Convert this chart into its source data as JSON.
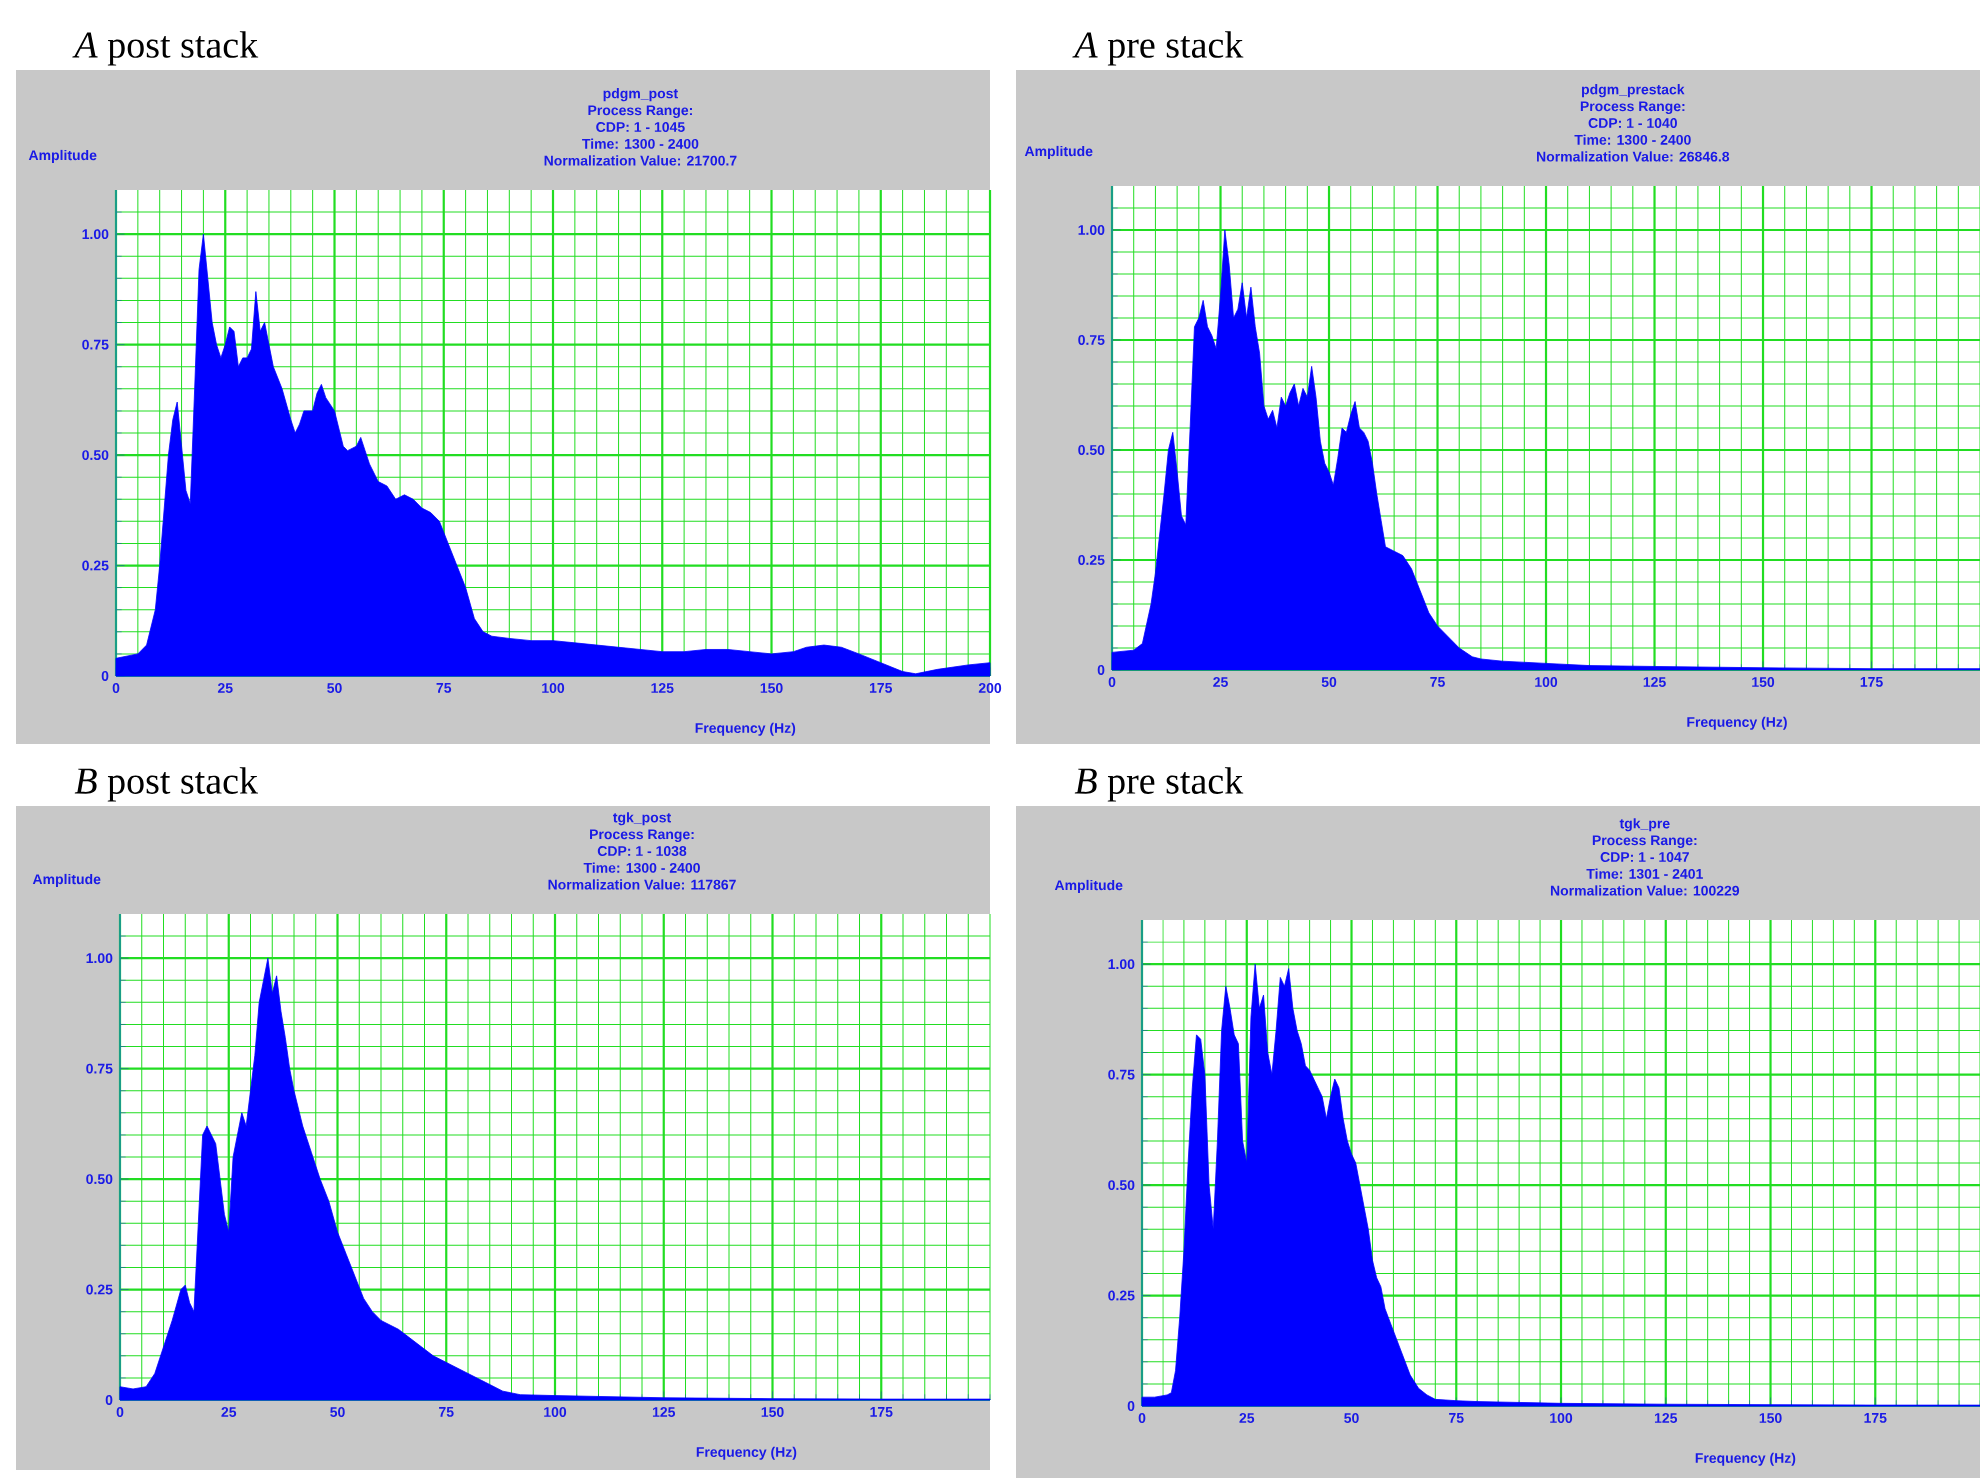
{
  "chart_data": [
    {
      "type": "area",
      "title": "*A* post stack",
      "subtitle": "pdgm_post",
      "annotations": [
        "Process Range:",
        "CDP: 1 - 1045",
        "Time: 1300 - 2400",
        "Normalization Value: 21700.7"
      ],
      "xlabel": "Frequency (Hz)",
      "ylabel": "Amplitude",
      "color": "#0000ff",
      "grid": true,
      "xlim": [
        0,
        200
      ],
      "ylim": [
        0,
        1.1
      ],
      "xticks": [
        0,
        {
          "value": 5,
          "label": null
        },
        {
          "value": 10,
          "label": null
        },
        {
          "value": 15,
          "label": null
        },
        {
          "value": 20,
          "label": null
        },
        25,
        {
          "value": 30,
          "label": null
        },
        {
          "value": 35,
          "label": null
        },
        {
          "value": 40,
          "label": null
        },
        {
          "value": 45,
          "label": null
        },
        50,
        {
          "value": 55,
          "label": null
        },
        {
          "value": 60,
          "label": null
        },
        {
          "value": 65,
          "label": null
        },
        {
          "value": 70,
          "label": null
        },
        75,
        {
          "value": 80,
          "label": null
        },
        {
          "value": 85,
          "label": null
        },
        {
          "value": 90,
          "label": null
        },
        {
          "value": 95,
          "label": null
        },
        100,
        {
          "value": 105,
          "label": null
        },
        {
          "value": 110,
          "label": null
        },
        {
          "value": 115,
          "label": null
        },
        {
          "value": 120,
          "label": null
        },
        125,
        {
          "value": 130,
          "label": null
        },
        {
          "value": 135,
          "label": null
        },
        {
          "value": 140,
          "label": null
        },
        {
          "value": 145,
          "label": null
        },
        150,
        {
          "value": 155,
          "label": null
        },
        {
          "value": 160,
          "label": null
        },
        {
          "value": 165,
          "label": null
        },
        {
          "value": 170,
          "label": null
        },
        175,
        {
          "value": 180,
          "label": null
        },
        {
          "value": 185,
          "label": null
        },
        {
          "value": 190,
          "label": null
        },
        {
          "value": 195,
          "label": null
        },
        200
      ],
      "yticks": [
        0,
        {
          "value": 0.05,
          "label": null
        },
        {
          "value": 0.1,
          "label": null
        },
        {
          "value": 0.15,
          "label": null
        },
        {
          "value": 0.2,
          "label": null
        },
        0.25,
        {
          "value": 0.3,
          "label": null
        },
        {
          "value": 0.35,
          "label": null
        },
        {
          "value": 0.4,
          "label": null
        },
        {
          "value": 0.45,
          "label": null
        },
        {
          "value": 0.5,
          "label": "0.50"
        },
        {
          "value": 0.55,
          "label": null
        },
        {
          "value": 0.6,
          "label": null
        },
        {
          "value": 0.65,
          "label": null
        },
        {
          "value": 0.7,
          "label": null
        },
        0.75,
        {
          "value": 0.8,
          "label": null
        },
        {
          "value": 0.85,
          "label": null
        },
        {
          "value": 0.9,
          "label": null
        },
        {
          "value": 0.95,
          "label": null
        },
        {
          "value": 1,
          "label": "1.00"
        },
        {
          "value": 1.05,
          "label": null
        }
      ],
      "x": [
        0,
        5,
        7,
        9,
        10,
        12,
        13,
        14,
        15,
        16,
        17,
        18,
        19,
        20,
        21,
        22,
        23,
        24,
        25,
        26,
        27,
        28,
        29,
        30,
        31,
        32,
        33,
        34,
        35,
        36,
        38,
        40,
        41,
        42,
        43,
        45,
        46,
        47,
        48,
        50,
        52,
        53,
        55,
        56,
        57,
        58,
        60,
        62,
        64,
        66,
        68,
        70,
        72,
        74,
        76,
        78,
        80,
        82,
        84,
        86,
        90,
        95,
        100,
        105,
        110,
        115,
        120,
        125,
        130,
        135,
        140,
        145,
        150,
        155,
        158,
        162,
        166,
        170,
        175,
        180,
        183,
        188,
        195,
        200
      ],
      "values": [
        0.04,
        0.05,
        0.07,
        0.15,
        0.25,
        0.5,
        0.58,
        0.62,
        0.52,
        0.42,
        0.39,
        0.65,
        0.92,
        1.0,
        0.9,
        0.8,
        0.75,
        0.72,
        0.75,
        0.79,
        0.78,
        0.7,
        0.72,
        0.72,
        0.74,
        0.87,
        0.78,
        0.8,
        0.75,
        0.7,
        0.65,
        0.58,
        0.55,
        0.57,
        0.6,
        0.6,
        0.64,
        0.66,
        0.63,
        0.6,
        0.52,
        0.51,
        0.52,
        0.54,
        0.51,
        0.48,
        0.44,
        0.43,
        0.4,
        0.41,
        0.4,
        0.38,
        0.37,
        0.35,
        0.3,
        0.25,
        0.2,
        0.13,
        0.1,
        0.09,
        0.085,
        0.08,
        0.08,
        0.075,
        0.07,
        0.065,
        0.06,
        0.055,
        0.055,
        0.06,
        0.06,
        0.055,
        0.05,
        0.055,
        0.065,
        0.07,
        0.065,
        0.05,
        0.03,
        0.01,
        0.005,
        0.015,
        0.025,
        0.03
      ]
    },
    {
      "type": "area",
      "title": "*A* pre stack",
      "subtitle": "pdgm_prestack",
      "annotations": [
        "Process Range:",
        "CDP: 1 - 1040",
        "Time: 1300 - 2400",
        "Normalization Value: 26846.8"
      ],
      "xlabel": "Frequency (Hz)",
      "ylabel": "Amplitude",
      "color": "#0000ff",
      "grid": true,
      "xlim": [
        0,
        200
      ],
      "ylim": [
        0,
        1.1
      ],
      "xticks": [
        0,
        {
          "value": 5,
          "label": null
        },
        {
          "value": 10,
          "label": null
        },
        {
          "value": 15,
          "label": null
        },
        {
          "value": 20,
          "label": null
        },
        25,
        {
          "value": 30,
          "label": null
        },
        {
          "value": 35,
          "label": null
        },
        {
          "value": 40,
          "label": null
        },
        {
          "value": 45,
          "label": null
        },
        50,
        {
          "value": 55,
          "label": null
        },
        {
          "value": 60,
          "label": null
        },
        {
          "value": 65,
          "label": null
        },
        {
          "value": 70,
          "label": null
        },
        75,
        {
          "value": 80,
          "label": null
        },
        {
          "value": 85,
          "label": null
        },
        {
          "value": 90,
          "label": null
        },
        {
          "value": 95,
          "label": null
        },
        100,
        {
          "value": 105,
          "label": null
        },
        {
          "value": 110,
          "label": null
        },
        {
          "value": 115,
          "label": null
        },
        {
          "value": 120,
          "label": null
        },
        125,
        {
          "value": 130,
          "label": null
        },
        {
          "value": 135,
          "label": null
        },
        {
          "value": 140,
          "label": null
        },
        {
          "value": 145,
          "label": null
        },
        150,
        {
          "value": 155,
          "label": null
        },
        {
          "value": 160,
          "label": null
        },
        {
          "value": 165,
          "label": null
        },
        {
          "value": 170,
          "label": null
        },
        175,
        {
          "value": 180,
          "label": null
        },
        {
          "value": 185,
          "label": null
        },
        {
          "value": 190,
          "label": null
        },
        {
          "value": 195,
          "label": null
        },
        {
          "value": 200,
          "label": null
        }
      ],
      "yticks": [
        0,
        {
          "value": 0.05,
          "label": null
        },
        {
          "value": 0.1,
          "label": null
        },
        {
          "value": 0.15,
          "label": null
        },
        {
          "value": 0.2,
          "label": null
        },
        0.25,
        {
          "value": 0.3,
          "label": null
        },
        {
          "value": 0.35,
          "label": null
        },
        {
          "value": 0.4,
          "label": null
        },
        {
          "value": 0.45,
          "label": null
        },
        {
          "value": 0.5,
          "label": "0.50"
        },
        {
          "value": 0.55,
          "label": null
        },
        {
          "value": 0.6,
          "label": null
        },
        {
          "value": 0.65,
          "label": null
        },
        {
          "value": 0.7,
          "label": null
        },
        0.75,
        {
          "value": 0.8,
          "label": null
        },
        {
          "value": 0.85,
          "label": null
        },
        {
          "value": 0.9,
          "label": null
        },
        {
          "value": 0.95,
          "label": null
        },
        {
          "value": 1,
          "label": "1.00"
        },
        {
          "value": 1.05,
          "label": null
        }
      ],
      "x": [
        0,
        5,
        7,
        9,
        10,
        12,
        13,
        14,
        15,
        16,
        17,
        18,
        19,
        20,
        21,
        22,
        23,
        24,
        25,
        26,
        27,
        28,
        29,
        30,
        31,
        32,
        33,
        34,
        35,
        36,
        37,
        38,
        39,
        40,
        41,
        42,
        43,
        44,
        45,
        46,
        47,
        48,
        49,
        50,
        51,
        52,
        53,
        54,
        55,
        56,
        57,
        58,
        59,
        60,
        61,
        62,
        63,
        65,
        67,
        69,
        71,
        73,
        75,
        78,
        80,
        83,
        85,
        90,
        100,
        110,
        125,
        150,
        175,
        200
      ],
      "values": [
        0.04,
        0.045,
        0.06,
        0.15,
        0.22,
        0.4,
        0.5,
        0.54,
        0.45,
        0.35,
        0.33,
        0.55,
        0.78,
        0.8,
        0.84,
        0.78,
        0.76,
        0.73,
        0.85,
        1.0,
        0.92,
        0.8,
        0.82,
        0.88,
        0.8,
        0.87,
        0.78,
        0.72,
        0.6,
        0.57,
        0.59,
        0.55,
        0.62,
        0.6,
        0.63,
        0.65,
        0.6,
        0.64,
        0.62,
        0.69,
        0.62,
        0.52,
        0.47,
        0.45,
        0.42,
        0.48,
        0.55,
        0.54,
        0.58,
        0.61,
        0.55,
        0.54,
        0.52,
        0.47,
        0.4,
        0.34,
        0.28,
        0.27,
        0.26,
        0.23,
        0.18,
        0.13,
        0.1,
        0.07,
        0.05,
        0.03,
        0.025,
        0.02,
        0.015,
        0.01,
        0.008,
        0.005,
        0.003,
        0.003
      ]
    },
    {
      "type": "area",
      "title": "*B* post stack",
      "subtitle": "tgk_post",
      "annotations": [
        "Process Range:",
        "CDP: 1 - 1038",
        "Time: 1300 - 2400",
        "Normalization Value: 117867"
      ],
      "xlabel": "Frequency (Hz)",
      "ylabel": "Amplitude",
      "color": "#0000ff",
      "grid": true,
      "xlim": [
        0,
        200
      ],
      "ylim": [
        0,
        1.1
      ],
      "xticks": [
        0,
        {
          "value": 5,
          "label": null
        },
        {
          "value": 10,
          "label": null
        },
        {
          "value": 15,
          "label": null
        },
        {
          "value": 20,
          "label": null
        },
        25,
        {
          "value": 30,
          "label": null
        },
        {
          "value": 35,
          "label": null
        },
        {
          "value": 40,
          "label": null
        },
        {
          "value": 45,
          "label": null
        },
        50,
        {
          "value": 55,
          "label": null
        },
        {
          "value": 60,
          "label": null
        },
        {
          "value": 65,
          "label": null
        },
        {
          "value": 70,
          "label": null
        },
        75,
        {
          "value": 80,
          "label": null
        },
        {
          "value": 85,
          "label": null
        },
        {
          "value": 90,
          "label": null
        },
        {
          "value": 95,
          "label": null
        },
        100,
        {
          "value": 105,
          "label": null
        },
        {
          "value": 110,
          "label": null
        },
        {
          "value": 115,
          "label": null
        },
        {
          "value": 120,
          "label": null
        },
        125,
        {
          "value": 130,
          "label": null
        },
        {
          "value": 135,
          "label": null
        },
        {
          "value": 140,
          "label": null
        },
        {
          "value": 145,
          "label": null
        },
        150,
        {
          "value": 155,
          "label": null
        },
        {
          "value": 160,
          "label": null
        },
        {
          "value": 165,
          "label": null
        },
        {
          "value": 170,
          "label": null
        },
        175,
        {
          "value": 180,
          "label": null
        },
        {
          "value": 185,
          "label": null
        },
        {
          "value": 190,
          "label": null
        },
        {
          "value": 195,
          "label": null
        },
        {
          "value": 200,
          "label": null
        }
      ],
      "yticks": [
        0,
        {
          "value": 0.05,
          "label": null
        },
        {
          "value": 0.1,
          "label": null
        },
        {
          "value": 0.15,
          "label": null
        },
        {
          "value": 0.2,
          "label": null
        },
        0.25,
        {
          "value": 0.3,
          "label": null
        },
        {
          "value": 0.35,
          "label": null
        },
        {
          "value": 0.4,
          "label": null
        },
        {
          "value": 0.45,
          "label": null
        },
        {
          "value": 0.5,
          "label": "0.50"
        },
        {
          "value": 0.55,
          "label": null
        },
        {
          "value": 0.6,
          "label": null
        },
        {
          "value": 0.65,
          "label": null
        },
        {
          "value": 0.7,
          "label": null
        },
        0.75,
        {
          "value": 0.8,
          "label": null
        },
        {
          "value": 0.85,
          "label": null
        },
        {
          "value": 0.9,
          "label": null
        },
        {
          "value": 0.95,
          "label": null
        },
        {
          "value": 1,
          "label": "1.00"
        },
        {
          "value": 1.05,
          "label": null
        }
      ],
      "x": [
        0,
        3,
        6,
        8,
        10,
        12,
        14,
        15,
        16,
        17,
        18,
        19,
        20,
        22,
        23,
        24,
        25,
        26,
        27,
        28,
        29,
        30,
        31,
        32,
        33,
        34,
        35,
        36,
        37,
        38,
        39,
        40,
        42,
        44,
        46,
        48,
        50,
        52,
        54,
        56,
        58,
        60,
        64,
        68,
        72,
        76,
        80,
        84,
        88,
        92,
        100,
        110,
        125,
        150,
        175,
        200
      ],
      "values": [
        0.03,
        0.025,
        0.03,
        0.06,
        0.12,
        0.18,
        0.25,
        0.26,
        0.22,
        0.2,
        0.4,
        0.6,
        0.62,
        0.58,
        0.5,
        0.42,
        0.38,
        0.55,
        0.6,
        0.65,
        0.62,
        0.7,
        0.78,
        0.9,
        0.95,
        1.0,
        0.92,
        0.96,
        0.88,
        0.82,
        0.75,
        0.7,
        0.62,
        0.56,
        0.5,
        0.45,
        0.38,
        0.33,
        0.28,
        0.23,
        0.2,
        0.18,
        0.16,
        0.13,
        0.1,
        0.08,
        0.06,
        0.04,
        0.02,
        0.012,
        0.01,
        0.008,
        0.005,
        0.003,
        0.002,
        0.002
      ]
    },
    {
      "type": "area",
      "title": "*B* pre stack",
      "subtitle": "tgk_pre",
      "annotations": [
        "Process Range:",
        "CDP: 1 - 1047",
        "Time: 1301 - 2401",
        "Normalization Value: 100229"
      ],
      "xlabel": "Frequency (Hz)",
      "ylabel": "Amplitude",
      "color": "#0000ff",
      "grid": true,
      "xlim": [
        0,
        200
      ],
      "ylim": [
        0,
        1.1
      ],
      "xticks": [
        0,
        {
          "value": 5,
          "label": null
        },
        {
          "value": 10,
          "label": null
        },
        {
          "value": 15,
          "label": null
        },
        {
          "value": 20,
          "label": null
        },
        25,
        {
          "value": 30,
          "label": null
        },
        {
          "value": 35,
          "label": null
        },
        {
          "value": 40,
          "label": null
        },
        {
          "value": 45,
          "label": null
        },
        50,
        {
          "value": 55,
          "label": null
        },
        {
          "value": 60,
          "label": null
        },
        {
          "value": 65,
          "label": null
        },
        {
          "value": 70,
          "label": null
        },
        75,
        {
          "value": 80,
          "label": null
        },
        {
          "value": 85,
          "label": null
        },
        {
          "value": 90,
          "label": null
        },
        {
          "value": 95,
          "label": null
        },
        100,
        {
          "value": 105,
          "label": null
        },
        {
          "value": 110,
          "label": null
        },
        {
          "value": 115,
          "label": null
        },
        {
          "value": 120,
          "label": null
        },
        125,
        {
          "value": 130,
          "label": null
        },
        {
          "value": 135,
          "label": null
        },
        {
          "value": 140,
          "label": null
        },
        {
          "value": 145,
          "label": null
        },
        150,
        {
          "value": 155,
          "label": null
        },
        {
          "value": 160,
          "label": null
        },
        {
          "value": 165,
          "label": null
        },
        {
          "value": 170,
          "label": null
        },
        175,
        {
          "value": 180,
          "label": null
        },
        {
          "value": 185,
          "label": null
        },
        {
          "value": 190,
          "label": null
        },
        {
          "value": 195,
          "label": null
        },
        {
          "value": 200,
          "label": null
        }
      ],
      "yticks": [
        0,
        {
          "value": 0.05,
          "label": null
        },
        {
          "value": 0.1,
          "label": null
        },
        {
          "value": 0.15,
          "label": null
        },
        {
          "value": 0.2,
          "label": null
        },
        0.25,
        {
          "value": 0.3,
          "label": null
        },
        {
          "value": 0.35,
          "label": null
        },
        {
          "value": 0.4,
          "label": null
        },
        {
          "value": 0.45,
          "label": null
        },
        {
          "value": 0.5,
          "label": "0.50"
        },
        {
          "value": 0.55,
          "label": null
        },
        {
          "value": 0.6,
          "label": null
        },
        {
          "value": 0.65,
          "label": null
        },
        {
          "value": 0.7,
          "label": null
        },
        0.75,
        {
          "value": 0.8,
          "label": null
        },
        {
          "value": 0.85,
          "label": null
        },
        {
          "value": 0.9,
          "label": null
        },
        {
          "value": 0.95,
          "label": null
        },
        {
          "value": 1,
          "label": "1.00"
        },
        {
          "value": 1.05,
          "label": null
        }
      ],
      "x": [
        0,
        3,
        6,
        7,
        8,
        9,
        10,
        11,
        12,
        13,
        14,
        15,
        16,
        17,
        18,
        19,
        20,
        21,
        22,
        23,
        24,
        25,
        26,
        27,
        28,
        29,
        30,
        31,
        32,
        33,
        34,
        35,
        36,
        37,
        38,
        39,
        40,
        41,
        42,
        43,
        44,
        45,
        46,
        47,
        48,
        49,
        50,
        51,
        52,
        53,
        54,
        55,
        56,
        57,
        58,
        60,
        62,
        64,
        66,
        68,
        70,
        75,
        80,
        90,
        100,
        125,
        150,
        175,
        200
      ],
      "values": [
        0.02,
        0.02,
        0.025,
        0.03,
        0.08,
        0.2,
        0.35,
        0.55,
        0.72,
        0.84,
        0.83,
        0.75,
        0.5,
        0.4,
        0.6,
        0.85,
        0.95,
        0.9,
        0.84,
        0.82,
        0.6,
        0.55,
        0.88,
        1.0,
        0.9,
        0.93,
        0.8,
        0.75,
        0.85,
        0.97,
        0.95,
        0.99,
        0.9,
        0.85,
        0.82,
        0.77,
        0.76,
        0.74,
        0.72,
        0.7,
        0.65,
        0.7,
        0.74,
        0.72,
        0.65,
        0.6,
        0.57,
        0.55,
        0.5,
        0.45,
        0.4,
        0.33,
        0.29,
        0.27,
        0.22,
        0.17,
        0.12,
        0.07,
        0.04,
        0.025,
        0.015,
        0.012,
        0.01,
        0.008,
        0.006,
        0.004,
        0.003,
        0.002,
        0.002
      ]
    }
  ]
}
